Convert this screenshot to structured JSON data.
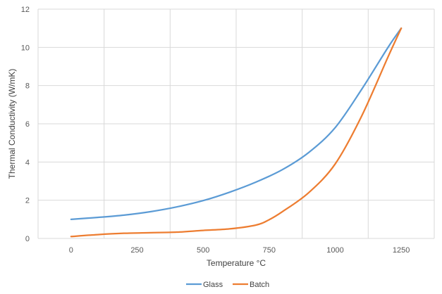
{
  "chart_data": {
    "type": "line",
    "xlabel": "Temperature °C",
    "ylabel": "Thermal Conductivity (W/mK)",
    "xlim": [
      -125,
      1375
    ],
    "ylim": [
      0,
      12
    ],
    "x_ticks": [
      0,
      250,
      500,
      750,
      1000,
      1250
    ],
    "y_ticks": [
      0,
      2,
      4,
      6,
      8,
      10,
      12
    ],
    "grid": true,
    "legend_position": "bottom",
    "series": [
      {
        "name": "Glass",
        "color": "#5B9BD5",
        "x": [
          0,
          100,
          200,
          300,
          400,
          500,
          600,
          700,
          800,
          900,
          1000,
          1100,
          1200,
          1250
        ],
        "y": [
          1.0,
          1.1,
          1.22,
          1.4,
          1.65,
          1.98,
          2.42,
          2.95,
          3.6,
          4.5,
          5.8,
          7.8,
          10.0,
          11.0
        ]
      },
      {
        "name": "Batch",
        "color": "#ED7D31",
        "x": [
          0,
          100,
          200,
          300,
          400,
          500,
          600,
          700,
          750,
          800,
          900,
          1000,
          1100,
          1200,
          1250
        ],
        "y": [
          0.1,
          0.2,
          0.27,
          0.3,
          0.33,
          0.42,
          0.5,
          0.7,
          0.98,
          1.4,
          2.4,
          3.9,
          6.4,
          9.5,
          11.0
        ]
      }
    ]
  }
}
